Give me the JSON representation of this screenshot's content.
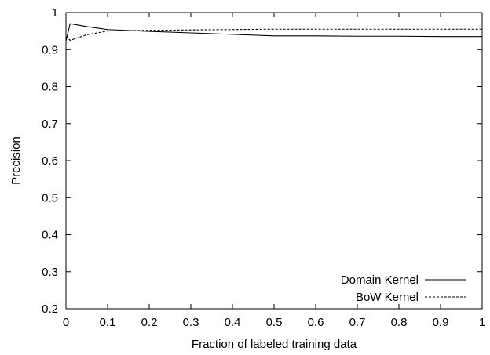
{
  "chart_data": {
    "type": "line",
    "title": "",
    "xlabel": "Fraction of labeled training data",
    "ylabel": "Precision",
    "xlim": [
      0,
      1
    ],
    "ylim": [
      0.2,
      1
    ],
    "xticks": [
      "0",
      "0.1",
      "0.2",
      "0.3",
      "0.4",
      "0.5",
      "0.6",
      "0.7",
      "0.8",
      "0.9",
      "1"
    ],
    "yticks": [
      "0.2",
      "0.3",
      "0.4",
      "0.5",
      "0.6",
      "0.7",
      "0.8",
      "0.9",
      "1"
    ],
    "grid": false,
    "legend_position": "bottom-right",
    "series": [
      {
        "name": "Domain Kernel",
        "style": "solid",
        "color": "#000000",
        "x": [
          0.0,
          0.01,
          0.05,
          0.1,
          0.2,
          0.3,
          0.4,
          0.5,
          0.6,
          0.7,
          0.8,
          0.9,
          1.0
        ],
        "y": [
          0.923,
          0.97,
          0.962,
          0.954,
          0.949,
          0.945,
          0.941,
          0.937,
          0.937,
          0.936,
          0.936,
          0.935,
          0.935
        ]
      },
      {
        "name": "BoW Kernel",
        "style": "dashed",
        "color": "#000000",
        "x": [
          0.0,
          0.01,
          0.05,
          0.1,
          0.2,
          0.3,
          0.4,
          0.5,
          0.6,
          0.7,
          0.8,
          0.9,
          1.0
        ],
        "y": [
          0.935,
          0.925,
          0.94,
          0.95,
          0.952,
          0.953,
          0.954,
          0.955,
          0.955,
          0.955,
          0.955,
          0.955,
          0.955
        ]
      }
    ]
  }
}
